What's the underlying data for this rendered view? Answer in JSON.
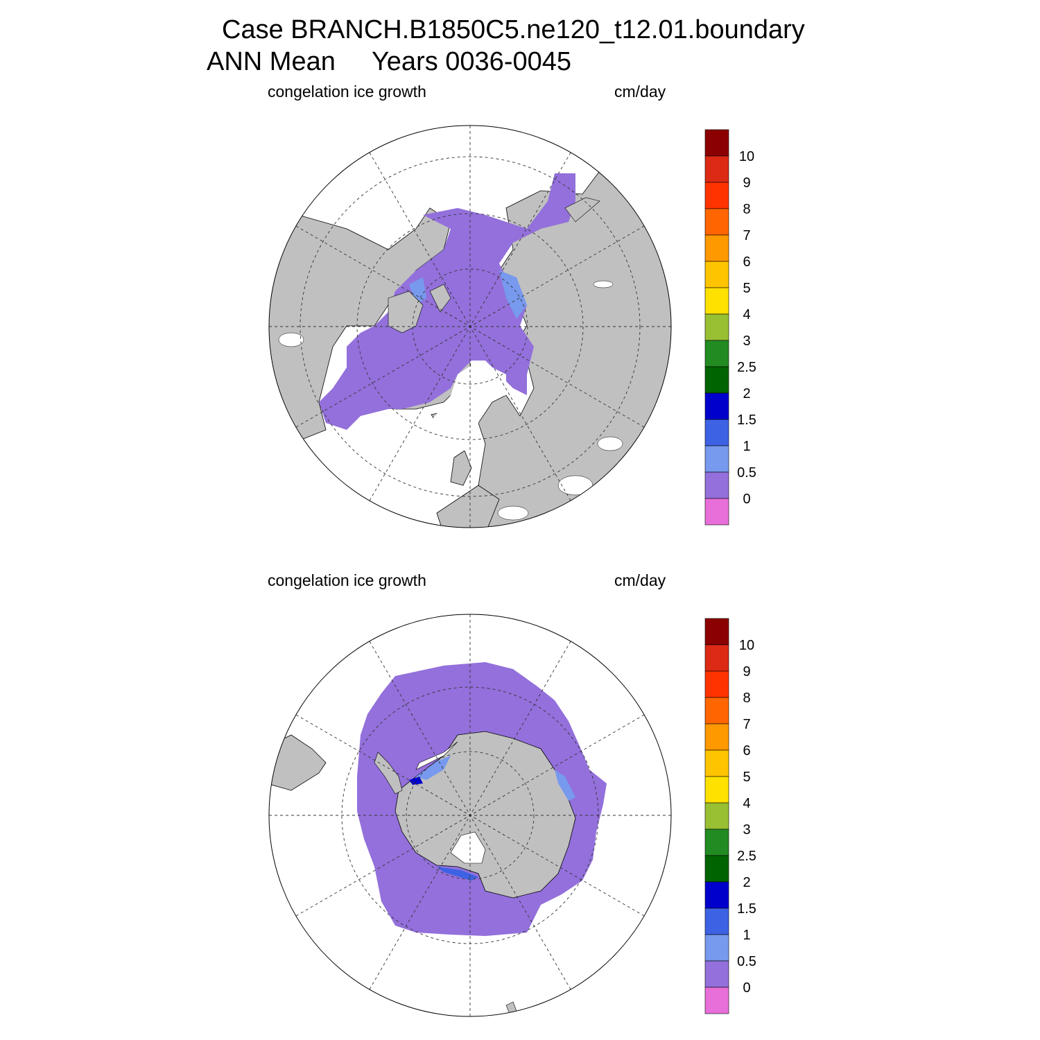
{
  "figure": {
    "title_case": "Case BRANCH.B1850C5.ne120_t12.01.boundary",
    "title_mean": "ANN Mean     Years 0036-0045"
  },
  "panels": [
    {
      "id": "arctic",
      "variable_label": "congelation ice growth",
      "units_label": "cm/day",
      "hemisphere": "north",
      "dominant_level": "0 to 0.5",
      "colorbar_labels": [
        "10",
        "9",
        "8",
        "7",
        "6",
        "5",
        "4",
        "3",
        "2.5",
        "2",
        "1.5",
        "1",
        "0.5",
        "0"
      ]
    },
    {
      "id": "antarctic",
      "variable_label": "congelation ice growth",
      "units_label": "cm/day",
      "hemisphere": "south",
      "dominant_level": "0 to 0.5",
      "colorbar_labels": [
        "10",
        "9",
        "8",
        "7",
        "6",
        "5",
        "4",
        "3",
        "2.5",
        "2",
        "1.5",
        "1",
        "0.5",
        "0"
      ]
    }
  ],
  "colorbar": {
    "levels": [
      "10",
      "9",
      "8",
      "7",
      "6",
      "5",
      "4",
      "3",
      "2.5",
      "2",
      "1.5",
      "1",
      "0.5",
      "0"
    ],
    "colors_top_to_bottom": [
      "#8B0000",
      "#DC2A14",
      "#FF3300",
      "#FF6600",
      "#FF9900",
      "#FFC400",
      "#FFE100",
      "#99BF33",
      "#228B22",
      "#006400",
      "#0000CD",
      "#3D62E4",
      "#7799EE",
      "#9370DB",
      "#E86FD9"
    ]
  },
  "colors": {
    "land": "#C0C0C0",
    "ocean": "#FFFFFF",
    "ice_growth_low": "#9370DB",
    "ice_growth_mid": "#7799EE",
    "ice_growth_high": "#3D62E4",
    "ice_growth_max": "#0000CD"
  }
}
